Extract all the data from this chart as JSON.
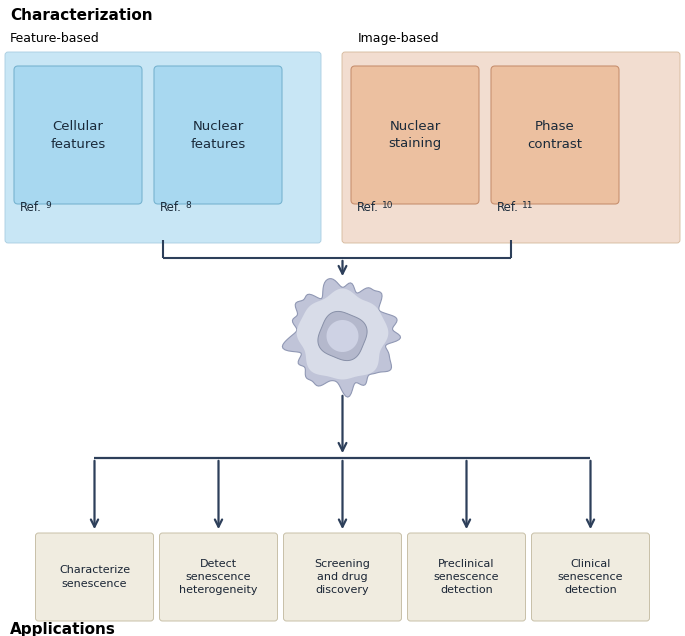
{
  "title": "Characterization",
  "bottom_label": "Applications",
  "feature_based_label": "Feature-based",
  "image_based_label": "Image-based",
  "feature_bg_color": "#c8e6f5",
  "feature_bg_edge": "#a8cce0",
  "image_bg_color": "#f2ddd0",
  "image_bg_edge": "#d4b89a",
  "app_box_color": "#f0ece0",
  "app_box_edge": "#c8c0a8",
  "arrow_color": "#2d3f5a",
  "feat_inner_color": "#a8d8f0",
  "feat_inner_edge": "#78b4d0",
  "img_inner_color": "#ecc0a0",
  "img_inner_edge": "#c89070",
  "feature_boxes": [
    {
      "label": "Cellular\nfeatures",
      "ref": "Ref.",
      "ref_sup": "9"
    },
    {
      "label": "Nuclear\nfeatures",
      "ref": "Ref.",
      "ref_sup": "8"
    }
  ],
  "image_boxes": [
    {
      "label": "Nuclear\nstaining",
      "ref": "Ref.",
      "ref_sup": "10"
    },
    {
      "label": "Phase\ncontrast",
      "ref": "Ref.",
      "ref_sup": "11"
    }
  ],
  "app_boxes": [
    "Characterize\nsenescence",
    "Detect\nsenescence\nheterogeneity",
    "Screening\nand drug\ndiscovery",
    "Preclinical\nsenescence\ndetection",
    "Clinical\nsenescence\ndetection"
  ]
}
